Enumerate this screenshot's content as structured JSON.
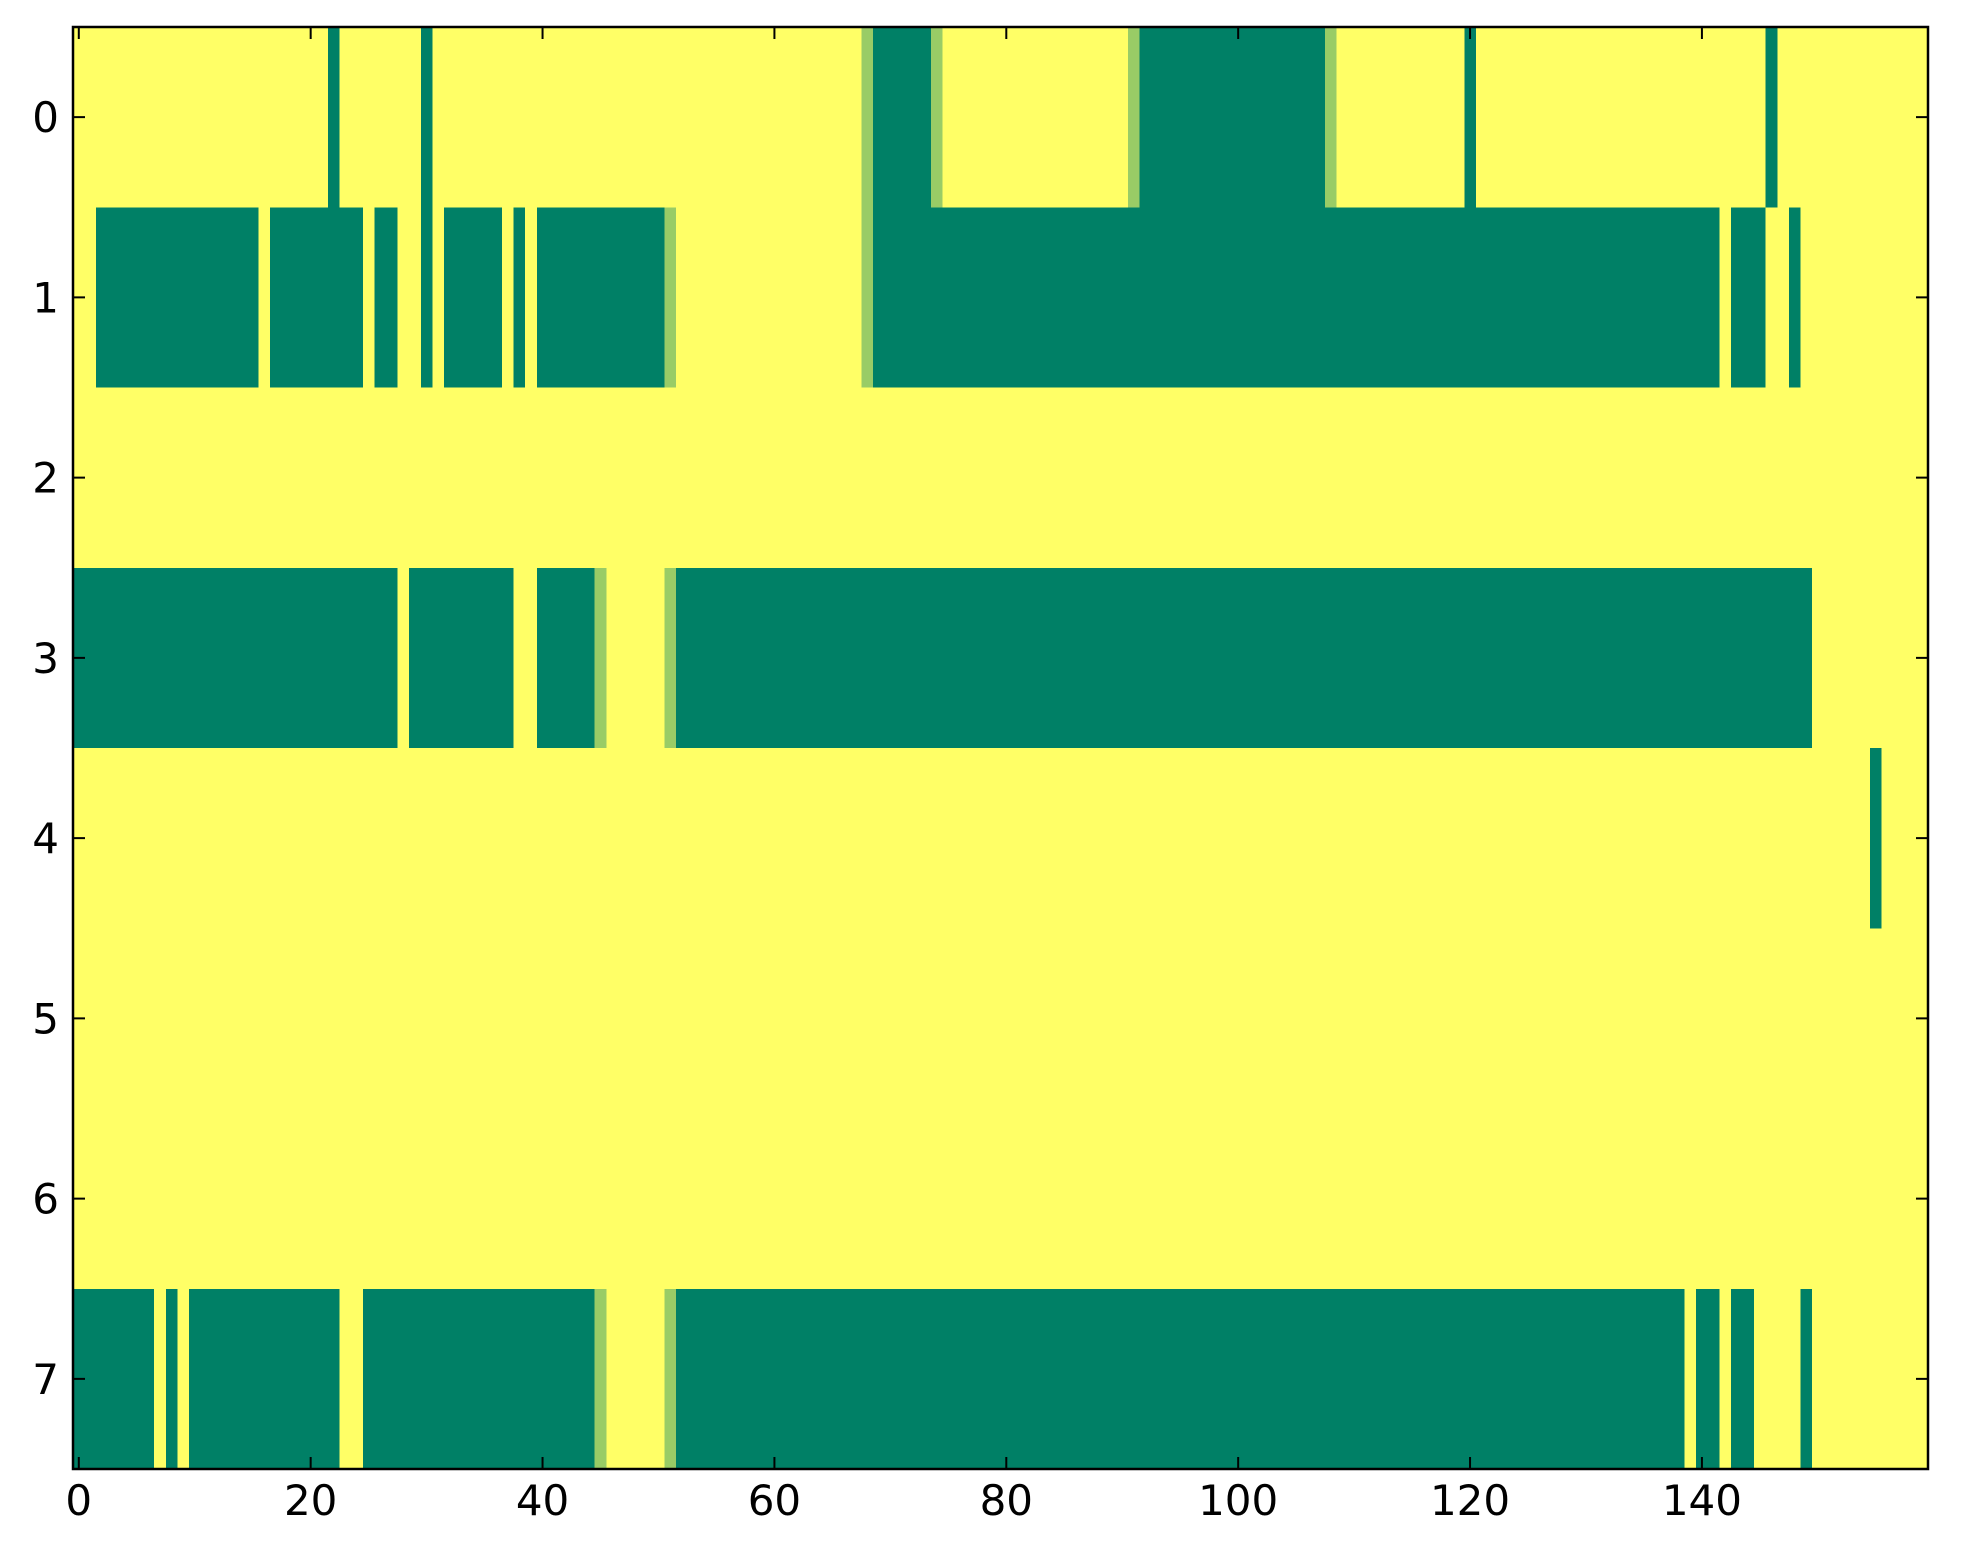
{
  "chart_data": {
    "type": "heatmap",
    "title": "",
    "xlabel": "",
    "ylabel": "",
    "xlim": [
      -0.5,
      159.5
    ],
    "ylim": [
      7.5,
      -0.5
    ],
    "x_ticks": [
      "0",
      "20",
      "40",
      "60",
      "80",
      "100",
      "120",
      "140"
    ],
    "y_ticks": [
      "0",
      "1",
      "2",
      "3",
      "4",
      "5",
      "6",
      "7"
    ],
    "grid": false,
    "colormap": "summer_r",
    "colors": {
      "low": "#ffff66",
      "mid": "#99cc66",
      "high": "#008066"
    },
    "background_value": 0,
    "rows": [
      {
        "row": 0,
        "cells": [
          {
            "start": 22,
            "end": 22,
            "value": 1
          },
          {
            "start": 30,
            "end": 30,
            "value": 1
          },
          {
            "start": 68,
            "end": 68,
            "value": 0.5
          },
          {
            "start": 69,
            "end": 73,
            "value": 1
          },
          {
            "start": 74,
            "end": 74,
            "value": 0.5
          },
          {
            "start": 91,
            "end": 91,
            "value": 0.5
          },
          {
            "start": 92,
            "end": 107,
            "value": 1
          },
          {
            "start": 108,
            "end": 108,
            "value": 0.5
          },
          {
            "start": 120,
            "end": 120,
            "value": 1
          },
          {
            "start": 146,
            "end": 146,
            "value": 1
          }
        ]
      },
      {
        "row": 1,
        "cells": [
          {
            "start": 2,
            "end": 15,
            "value": 1
          },
          {
            "start": 17,
            "end": 24,
            "value": 1
          },
          {
            "start": 26,
            "end": 27,
            "value": 1
          },
          {
            "start": 30,
            "end": 30,
            "value": 1
          },
          {
            "start": 32,
            "end": 36,
            "value": 1
          },
          {
            "start": 38,
            "end": 38,
            "value": 1
          },
          {
            "start": 40,
            "end": 50,
            "value": 1
          },
          {
            "start": 51,
            "end": 51,
            "value": 0.5
          },
          {
            "start": 68,
            "end": 68,
            "value": 0.5
          },
          {
            "start": 69,
            "end": 141,
            "value": 1
          },
          {
            "start": 143,
            "end": 145,
            "value": 1
          },
          {
            "start": 148,
            "end": 148,
            "value": 1
          }
        ]
      },
      {
        "row": 2,
        "cells": []
      },
      {
        "row": 3,
        "cells": [
          {
            "start": 0,
            "end": 27,
            "value": 1
          },
          {
            "start": 29,
            "end": 37,
            "value": 1
          },
          {
            "start": 40,
            "end": 44,
            "value": 1
          },
          {
            "start": 45,
            "end": 45,
            "value": 0.5
          },
          {
            "start": 51,
            "end": 51,
            "value": 0.5
          },
          {
            "start": 52,
            "end": 149,
            "value": 1
          }
        ]
      },
      {
        "row": 4,
        "cells": [
          {
            "start": 155,
            "end": 155,
            "value": 1
          }
        ]
      },
      {
        "row": 5,
        "cells": []
      },
      {
        "row": 6,
        "cells": []
      },
      {
        "row": 7,
        "cells": [
          {
            "start": 0,
            "end": 6,
            "value": 1
          },
          {
            "start": 8,
            "end": 8,
            "value": 1
          },
          {
            "start": 10,
            "end": 22,
            "value": 1
          },
          {
            "start": 25,
            "end": 44,
            "value": 1
          },
          {
            "start": 45,
            "end": 45,
            "value": 0.5
          },
          {
            "start": 51,
            "end": 51,
            "value": 0.5
          },
          {
            "start": 52,
            "end": 138,
            "value": 1
          },
          {
            "start": 140,
            "end": 141,
            "value": 1
          },
          {
            "start": 143,
            "end": 144,
            "value": 1
          },
          {
            "start": 149,
            "end": 149,
            "value": 1
          }
        ]
      }
    ]
  }
}
